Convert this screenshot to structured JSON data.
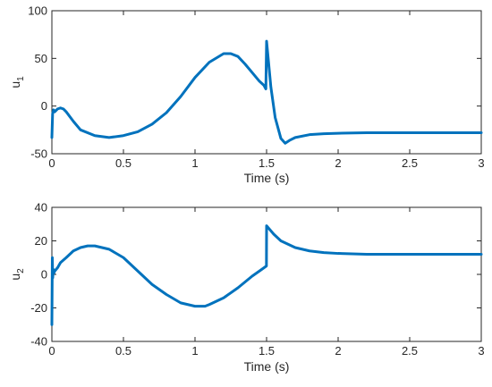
{
  "chart_data": [
    {
      "type": "line",
      "title": "",
      "xlabel": "Time (s)",
      "ylabel": {
        "base": "u",
        "subscript": "1"
      },
      "xlim": [
        0,
        3
      ],
      "ylim": [
        -50,
        100
      ],
      "xticks": [
        0,
        0.5,
        1,
        1.5,
        2,
        2.5,
        3
      ],
      "xtick_labels": [
        "0",
        "0.5",
        "1",
        "1.5",
        "2",
        "2.5",
        "3"
      ],
      "yticks": [
        -50,
        0,
        50,
        100
      ],
      "ytick_labels": [
        "-50",
        "0",
        "50",
        "100"
      ],
      "grid": false,
      "color": "#0072BD",
      "series": [
        {
          "x": [
            0,
            0.005,
            0.012,
            0.02,
            0.04,
            0.06,
            0.08,
            0.1,
            0.15,
            0.2,
            0.3,
            0.4,
            0.5,
            0.6,
            0.7,
            0.8,
            0.9,
            1.0,
            1.1,
            1.2,
            1.25,
            1.3,
            1.35,
            1.4,
            1.45,
            1.48,
            1.495,
            1.5,
            1.51,
            1.53,
            1.56,
            1.6,
            1.63,
            1.66,
            1.7,
            1.8,
            1.9,
            2.0,
            2.2,
            2.5,
            3.0
          ],
          "y": [
            -33,
            -8,
            -4,
            -6,
            -3,
            -2,
            -3,
            -6,
            -16,
            -25,
            -31,
            -33,
            -31,
            -27,
            -19,
            -7,
            10,
            30,
            46,
            55,
            55,
            52,
            44,
            35,
            26,
            22,
            18,
            68,
            52,
            20,
            -12,
            -34,
            -39,
            -36,
            -33,
            -30,
            -29,
            -28.5,
            -28,
            -28,
            -28
          ]
        }
      ]
    },
    {
      "type": "line",
      "title": "",
      "xlabel": "Time (s)",
      "ylabel": {
        "base": "u",
        "subscript": "2"
      },
      "xlim": [
        0,
        3
      ],
      "ylim": [
        -40,
        40
      ],
      "xticks": [
        0,
        0.5,
        1,
        1.5,
        2,
        2.5,
        3
      ],
      "xtick_labels": [
        "0",
        "0.5",
        "1",
        "1.5",
        "2",
        "2.5",
        "3"
      ],
      "yticks": [
        -40,
        -20,
        0,
        20,
        40
      ],
      "ytick_labels": [
        "-40",
        "-20",
        "0",
        "20",
        "40"
      ],
      "grid": false,
      "color": "#0072BD",
      "series": [
        {
          "x": [
            0,
            0.003,
            0.006,
            0.01,
            0.015,
            0.02,
            0.04,
            0.06,
            0.1,
            0.15,
            0.2,
            0.25,
            0.3,
            0.35,
            0.4,
            0.5,
            0.6,
            0.7,
            0.8,
            0.9,
            1.0,
            1.07,
            1.1,
            1.2,
            1.3,
            1.4,
            1.45,
            1.499,
            1.5,
            1.55,
            1.6,
            1.7,
            1.8,
            1.9,
            2.0,
            2.2,
            2.5,
            3.0
          ],
          "y": [
            -30,
            10,
            -2,
            3,
            1,
            2,
            4,
            7,
            10,
            14,
            16,
            17,
            17,
            16,
            15,
            10,
            2,
            -6,
            -12,
            -17,
            -19,
            -19,
            -18,
            -14,
            -8,
            -1,
            2,
            5,
            29,
            24,
            20,
            16,
            14,
            13,
            12.5,
            12,
            12,
            12
          ]
        }
      ]
    }
  ]
}
